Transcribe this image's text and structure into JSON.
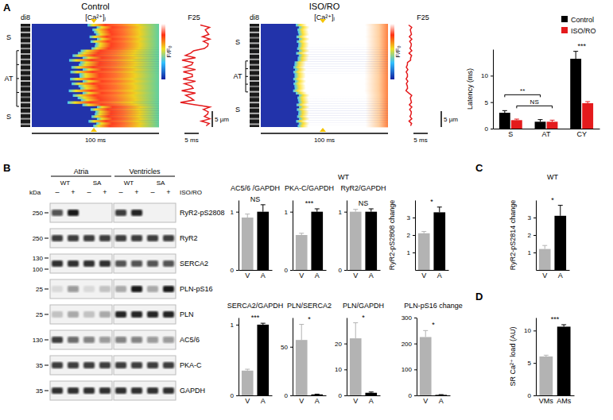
{
  "chart_data": [
    {
      "type": "bar",
      "y_label": "Latency (ms)",
      "categories": [
        "S",
        "AT",
        "CY"
      ],
      "series": [
        {
          "name": "Control",
          "color": "#000000",
          "values": [
            3.0,
            1.3,
            13.2
          ],
          "errors": [
            0.4,
            0.4,
            1.4
          ]
        },
        {
          "name": "ISO/RO",
          "color": "#e41a1c",
          "values": [
            1.6,
            1.3,
            4.8
          ],
          "errors": [
            0.2,
            0.3,
            0.3
          ]
        }
      ],
      "ylim": [
        0,
        15
      ],
      "yticks": [
        0,
        5,
        10
      ],
      "legend": "top-right",
      "annotations": [
        {
          "text": "**",
          "categories": [
            "S",
            "AT"
          ],
          "series": "Control"
        },
        {
          "text": "NS",
          "categories": [
            "S",
            "AT"
          ],
          "series": "ISO/RO"
        },
        {
          "text": "***",
          "categories": [
            "CY"
          ]
        }
      ]
    },
    {
      "type": "bar",
      "title": "AC5/6 /GAPDH",
      "categories": [
        "V",
        "A"
      ],
      "values": [
        0.9,
        1.0
      ],
      "errors": [
        0.06,
        0.12
      ],
      "colors": [
        "#b3b3b3",
        "#000000"
      ],
      "ylim": [
        0,
        1.2
      ],
      "yticks": [
        0,
        1
      ],
      "annotations": [
        {
          "text": "NS"
        }
      ]
    },
    {
      "type": "bar",
      "title": "PKA-C/GAPDH",
      "categories": [
        "V",
        "A"
      ],
      "values": [
        0.6,
        1.0
      ],
      "errors": [
        0.03,
        0.05
      ],
      "colors": [
        "#b3b3b3",
        "#000000"
      ],
      "ylim": [
        0,
        1.2
      ],
      "yticks": [
        0,
        1
      ],
      "annotations": [
        {
          "text": "***"
        }
      ]
    },
    {
      "type": "bar",
      "title": "RyR2/GAPDH",
      "categories": [
        "V",
        "A"
      ],
      "values": [
        1.0,
        1.0
      ],
      "errors": [
        0.04,
        0.05
      ],
      "colors": [
        "#b3b3b3",
        "#000000"
      ],
      "ylim": [
        0,
        1.2
      ],
      "yticks": [
        0,
        1
      ],
      "annotations": [
        {
          "text": "NS"
        }
      ]
    },
    {
      "type": "bar",
      "y_label": "RyR2-pS2808 change",
      "categories": [
        "V",
        "A"
      ],
      "values": [
        2.1,
        3.3
      ],
      "errors": [
        0.1,
        0.3
      ],
      "colors": [
        "#b3b3b3",
        "#000000"
      ],
      "ylim": [
        0,
        4
      ],
      "yticks": [
        1,
        2,
        3
      ],
      "annotations": [
        {
          "text": "*"
        }
      ]
    },
    {
      "type": "bar",
      "title": "SERCA2/GAPDH",
      "categories": [
        "V",
        "A"
      ],
      "values": [
        0.35,
        1.0
      ],
      "errors": [
        0.02,
        0.02
      ],
      "colors": [
        "#b3b3b3",
        "#000000"
      ],
      "ylim": [
        0,
        1.1
      ],
      "yticks": [
        0,
        1
      ],
      "annotations": [
        {
          "text": "***"
        }
      ]
    },
    {
      "type": "bar",
      "title": "PLN/SERCA2",
      "categories": [
        "V",
        "A"
      ],
      "values": [
        57,
        1
      ],
      "errors": [
        16,
        0.3
      ],
      "colors": [
        "#b3b3b3",
        "#000000"
      ],
      "ylim": [
        0,
        80
      ],
      "yticks": [
        0,
        50
      ],
      "annotations": [
        {
          "text": "*"
        }
      ]
    },
    {
      "type": "bar",
      "title": "PLN/GAPDH",
      "categories": [
        "V",
        "A"
      ],
      "values": [
        22,
        1
      ],
      "errors": [
        6,
        0.3
      ],
      "colors": [
        "#b3b3b3",
        "#000000"
      ],
      "ylim": [
        0,
        30
      ],
      "yticks": [
        0,
        10,
        20
      ],
      "annotations": [
        {
          "text": "*"
        }
      ]
    },
    {
      "type": "bar",
      "title": "PLN-pS16 change",
      "categories": [
        "V",
        "A"
      ],
      "values": [
        225,
        2
      ],
      "errors": [
        25,
        1
      ],
      "colors": [
        "#b3b3b3",
        "#000000"
      ],
      "ylim": [
        0,
        300
      ],
      "yticks": [
        0,
        100,
        200,
        300
      ],
      "annotations": [
        {
          "text": "*"
        }
      ]
    },
    {
      "type": "bar",
      "y_label": "RyR2-pS2814 change",
      "categories": [
        "V",
        "A"
      ],
      "values": [
        1.2,
        3.1
      ],
      "errors": [
        0.2,
        0.6
      ],
      "colors": [
        "#b3b3b3",
        "#000000"
      ],
      "ylim": [
        0,
        4
      ],
      "yticks": [
        1,
        2,
        3
      ],
      "annotations": [
        {
          "text": "*"
        }
      ]
    },
    {
      "type": "bar",
      "y_label": "SR Ca²⁺ load (AU)",
      "categories": [
        "VMs",
        "AMs"
      ],
      "values": [
        6.0,
        10.6
      ],
      "errors": [
        0.2,
        0.3
      ],
      "colors": [
        "#b3b3b3",
        "#000000"
      ],
      "ylim": [
        0,
        12
      ],
      "yticks": [
        0,
        5,
        10
      ],
      "annotations": [
        {
          "text": "***"
        }
      ]
    }
  ],
  "figure": {
    "panel_labels": [
      "A",
      "B",
      "C",
      "D"
    ],
    "group_labels": [
      "WT",
      "WT"
    ],
    "linescans": [
      {
        "title": "Control",
        "channel_labels": [
          "di8",
          "[Ca²⁺]ᵢ",
          "F25"
        ],
        "regions": [
          "S",
          "AT",
          "S"
        ],
        "time_bar": "100 ms",
        "trace_bar": "5 ms",
        "space_bar": "5 µm",
        "colorbar_label": "F/F₀"
      },
      {
        "title": "ISO/RO",
        "channel_labels": [
          "di8",
          "[Ca²⁺]ᵢ",
          "F25"
        ],
        "regions": [
          "S",
          "AT",
          "S"
        ],
        "time_bar": "100 ms",
        "trace_bar": "5 ms",
        "space_bar": "5 µm",
        "colorbar_label": "F/F₀"
      }
    ],
    "blot": {
      "groups": [
        "Atria",
        "Ventricles"
      ],
      "genotypes": [
        "WT",
        "SA",
        "WT",
        "SA"
      ],
      "treatment": [
        "–",
        "+",
        "–",
        "+",
        "–",
        "+",
        "–",
        "+"
      ],
      "treatment_label": "ISO/RO",
      "kda_label": "kDa",
      "rows": [
        {
          "label": "RyR2-pS2808",
          "kda": [
            250
          ],
          "bands": [
            0.7,
            0.95,
            0,
            0,
            0.8,
            0.9,
            0,
            0
          ]
        },
        {
          "label": "RyR2",
          "kda": [
            250
          ],
          "bands": [
            0.8,
            0.8,
            0.8,
            0.8,
            0.8,
            0.8,
            0.8,
            0.8
          ]
        },
        {
          "label": "SERCA2",
          "kda": [
            130,
            100
          ],
          "bands": [
            0.85,
            0.85,
            0.85,
            0.85,
            0.7,
            0.7,
            0.7,
            0.7
          ]
        },
        {
          "label": "PLN-pS16",
          "kda": [
            25
          ],
          "bands": [
            0.1,
            0.4,
            0.1,
            0.2,
            0.3,
            0.95,
            0.3,
            0.95
          ]
        },
        {
          "label": "PLN",
          "kda": [
            25
          ],
          "bands": [
            0.2,
            0.3,
            0.2,
            0.3,
            0.9,
            0.9,
            0.9,
            0.9
          ]
        },
        {
          "label": "AC5/6",
          "kda": [
            130
          ],
          "bands": [
            0.8,
            0.6,
            0.5,
            0.4,
            0.5,
            0.5,
            0.4,
            0.4
          ]
        },
        {
          "label": "PKA-C",
          "kda": [
            35
          ],
          "bands": [
            0.8,
            0.8,
            0.8,
            0.8,
            0.8,
            0.8,
            0.8,
            0.8
          ]
        },
        {
          "label": "GAPDH",
          "kda": [
            35
          ],
          "bands": [
            0.85,
            0.85,
            0.85,
            0.85,
            0.85,
            0.85,
            0.85,
            0.85
          ]
        }
      ]
    }
  }
}
